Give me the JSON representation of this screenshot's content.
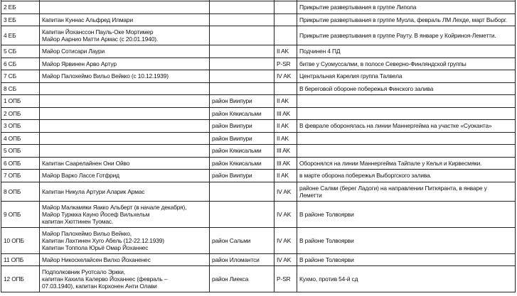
{
  "rows": [
    {
      "unit": "2 ЕБ",
      "commander": "",
      "area": "",
      "corps": "",
      "note": "Прикрытие развертывания в группе Липола"
    },
    {
      "unit": "3 ЕБ",
      "commander": "Капитан Куннас Альфред Илмари",
      "area": "",
      "corps": "",
      "note": "Прикрытие развертывания в группе Муола, февраль ЛМ Лехде, март Выборг."
    },
    {
      "unit": "4 ЕБ",
      "commander": "Капитан Йоханссон Пауль-Оке Мортимер\nМайор Аарнио Матти Армас (с 20.01.1940).",
      "area": "",
      "corps": "",
      "note": "Прикрытие развертывания в группе Рауту. В январе у Койриноя-Леметти."
    },
    {
      "unit": "5 СБ",
      "commander": "Майор Сотисари Лаури",
      "area": "",
      "corps": "II AK",
      "note": "Подчинен 4 ПД"
    },
    {
      "unit": "6 СБ",
      "commander": "Майор Ярвинен Арво Артур",
      "area": "",
      "corps": "P-SR",
      "note": "битве у Суомуссалми, в полосе Северно-Финляндской группы"
    },
    {
      "unit": "7 СБ",
      "commander": "Майор Палохеймо Вильо Вейкко (с 10.12.1939)",
      "area": "",
      "corps": "IV AK",
      "note": "Центральная Карелия группа Талвела"
    },
    {
      "unit": "8 СБ",
      "commander": "",
      "area": "",
      "corps": "",
      "note": "В береговой обороне побережья Финского залива"
    },
    {
      "unit": "1 ОПБ",
      "commander": "",
      "area": "район Виипури",
      "corps": "II AK",
      "note": ""
    },
    {
      "unit": "2 ОПБ",
      "commander": "",
      "area": "район Кякисальми",
      "corps": "III AK",
      "note": ""
    },
    {
      "unit": "3 ОПБ",
      "commander": "",
      "area": "район Виипури",
      "corps": "II AK",
      "note": "В феврале оборонялась на линии Маннергейма на участке «Суоканта»"
    },
    {
      "unit": "4 ОПБ",
      "commander": "",
      "area": "район Виипури",
      "corps": "II AK",
      "note": ""
    },
    {
      "unit": "5 ОПБ",
      "commander": "",
      "area": "район Кякисальми",
      "corps": "III AK",
      "note": ""
    },
    {
      "unit": "6 ОПБ",
      "commander": "Капитан Саарелайнен Они Ойво",
      "area": "район Кякисальми",
      "corps": "III AK",
      "note": "Оборонялся на линии Маннергейма Тайпале у Келья и Кирвесмяки."
    },
    {
      "unit": "7 ОПБ",
      "commander": "Майор Варко Лассе Готфрид",
      "area": "район Виипури",
      "corps": "II AK",
      "note": " в марте оборона побережья Выборгского залива."
    },
    {
      "unit": "8 ОПБ",
      "commander": "Капитан Никула Артури Аларик Армас",
      "area": "",
      "corps": "IV AK",
      "note": "районе Салми (берег Ладоги) на направлении Питкяранта, в январе у\nЛеметти"
    },
    {
      "unit": "9 ОПБ",
      "commander": "Майор Малкамяки Яакко Альберт (в начале декабря),\nМайор Турккка Кауно Йосеф Вильхельм\nкапитан Хюттинен Туомас.",
      "area": "",
      "corps": "IV AK",
      "note": "В районе Толвоярви"
    },
    {
      "unit": "10 ОПБ",
      "commander": "Майор Палохеймо Вильо Вейкко,\nКапитан Лахтинен Хуго Абель (12-22.12.1939)\nКапитан Топпола Юрьё Омар Йоханнес",
      "area": "район Сальми",
      "corps": "IV AK",
      "note": "В районе Толвоярви"
    },
    {
      "unit": "11 ОПБ",
      "commander": "Майор Никоскелайсен Вилхо Йоханенес",
      "area": "район Иломантси",
      "corps": "IV AK",
      "note": "В районе Толвоярви"
    },
    {
      "unit": "12 ОПБ",
      "commander": "Подполковник Руотсало Эркки,\nкапитан Кахила Калерво Йоханнес (февраль –\n07.03.1940), капитан Корхонен Анти Олави",
      "area": "район Лиекса",
      "corps": "P-SR",
      "note": "Кухмо, против 54-й сд"
    }
  ]
}
